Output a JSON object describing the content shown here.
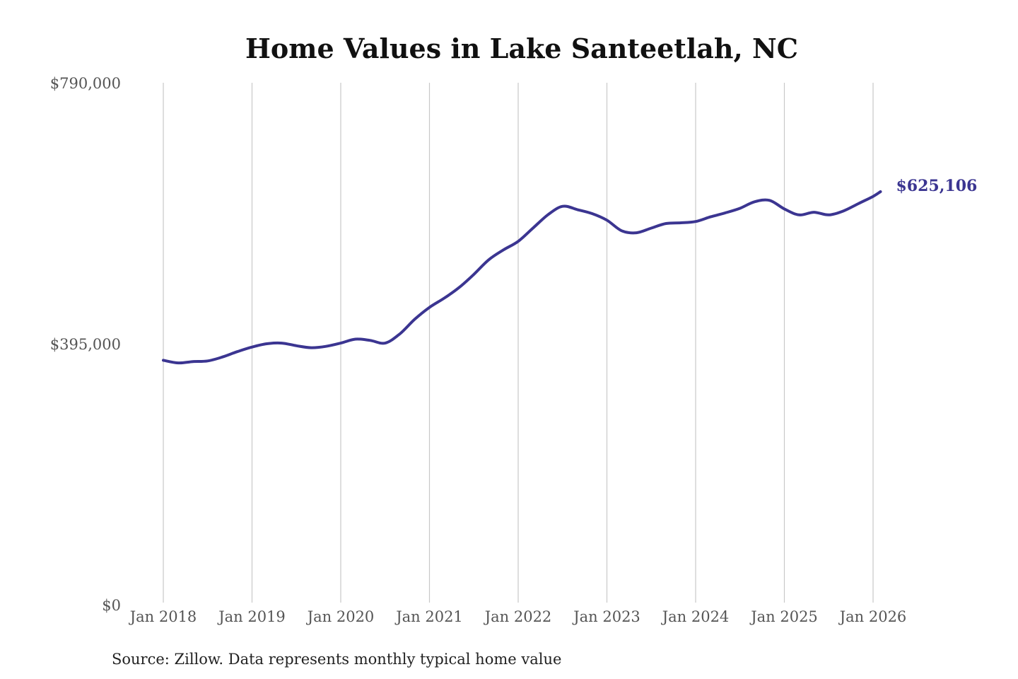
{
  "chart_data": {
    "type": "line",
    "title": "Home Values in Lake Santeetlah, NC",
    "source": "Source: Zillow. Data represents monthly typical home value",
    "ylim": [
      0,
      790000
    ],
    "yticks": [
      0,
      395000,
      790000
    ],
    "ytick_labels": [
      "$0",
      "$395,000",
      "$790,000"
    ],
    "xlim": [
      "2018-01",
      "2026-02"
    ],
    "xticks": [
      "2018-01",
      "2019-01",
      "2020-01",
      "2021-01",
      "2022-01",
      "2023-01",
      "2024-01",
      "2025-01",
      "2026-01"
    ],
    "xtick_labels": [
      "Jan 2018",
      "Jan 2019",
      "Jan 2020",
      "Jan 2021",
      "Jan 2022",
      "Jan 2023",
      "Jan 2024",
      "Jan 2025",
      "Jan 2026"
    ],
    "grid": "vertical",
    "line_color": "#3b3591",
    "end_label": "$625,106",
    "series": [
      {
        "x": [
          "2018-01",
          "2018-03",
          "2018-05",
          "2018-07",
          "2018-09",
          "2018-11",
          "2019-01",
          "2019-03",
          "2019-05",
          "2019-07",
          "2019-09",
          "2019-11",
          "2020-01",
          "2020-03",
          "2020-05",
          "2020-07",
          "2020-09",
          "2020-11",
          "2021-01",
          "2021-03",
          "2021-05",
          "2021-07",
          "2021-09",
          "2021-11",
          "2022-01",
          "2022-03",
          "2022-05",
          "2022-07",
          "2022-09",
          "2022-11",
          "2023-01",
          "2023-03",
          "2023-05",
          "2023-07",
          "2023-09",
          "2023-11",
          "2024-01",
          "2024-03",
          "2024-05",
          "2024-07",
          "2024-09",
          "2024-11",
          "2025-01",
          "2025-03",
          "2025-05",
          "2025-07",
          "2025-09",
          "2025-11",
          "2026-01",
          "2026-02"
        ],
        "values": [
          370000,
          366000,
          368000,
          369000,
          375000,
          383000,
          390000,
          395000,
          396000,
          392000,
          389000,
          391000,
          396000,
          402000,
          400000,
          396000,
          410000,
          432000,
          450000,
          464000,
          480000,
          500000,
          522000,
          537000,
          550000,
          570000,
          590000,
          603000,
          598000,
          592000,
          582000,
          566000,
          563000,
          570000,
          577000,
          578000,
          580000,
          587000,
          593000,
          600000,
          610000,
          612000,
          599000,
          590000,
          594000,
          590000,
          596000,
          607000,
          618000,
          625106
        ]
      }
    ]
  }
}
